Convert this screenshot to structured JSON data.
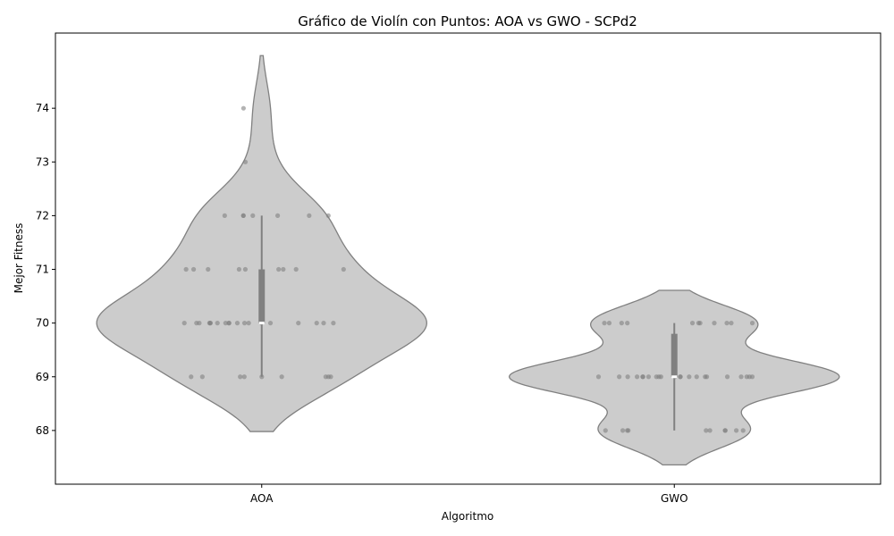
{
  "chart_data": {
    "type": "violin",
    "title": "Gráfico de Violín con Puntos: AOA vs GWO - SCPd2",
    "xlabel": "Algoritmo",
    "ylabel": "Mejor Fitness",
    "categories": [
      "AOA",
      "GWO"
    ],
    "y_ticks": [
      68,
      69,
      70,
      71,
      72,
      73,
      74
    ],
    "ylim": [
      67.0,
      75.4
    ],
    "grid": false,
    "colors": {
      "violin_fill": "#cccccc",
      "violin_edge": "#808080",
      "points": "#808080",
      "box": "#808080",
      "median": "#ffffff"
    },
    "series": [
      {
        "category": "AOA",
        "points": [
          69,
          69,
          69,
          69,
          69,
          69,
          69,
          69,
          69,
          70,
          70,
          70,
          70,
          70,
          70,
          70,
          70,
          70,
          70,
          70,
          70,
          70,
          70,
          70,
          70,
          70,
          70,
          70,
          71,
          71,
          71,
          71,
          71,
          71,
          71,
          71,
          71,
          72,
          72,
          72,
          72,
          72,
          72,
          72,
          73,
          74
        ],
        "box": {
          "q1": 70,
          "median": 70,
          "q3": 71,
          "whisker_low": 69,
          "whisker_high": 72
        },
        "kde_range": [
          67.98,
          74.98
        ]
      },
      {
        "category": "GWO",
        "points": [
          68,
          68,
          68,
          68,
          68,
          68,
          68,
          68,
          68,
          68,
          69,
          69,
          69,
          69,
          69,
          69,
          69,
          69,
          69,
          69,
          69,
          69,
          69,
          69,
          69,
          69,
          69,
          69,
          69,
          69,
          69,
          69,
          70,
          70,
          70,
          70,
          70,
          70,
          70,
          70,
          70,
          70,
          70
        ],
        "box": {
          "q1": 69,
          "median": 69,
          "q3": 69.8,
          "whisker_low": 68,
          "whisker_high": 70
        },
        "kde_range": [
          67.36,
          70.61
        ]
      }
    ]
  }
}
